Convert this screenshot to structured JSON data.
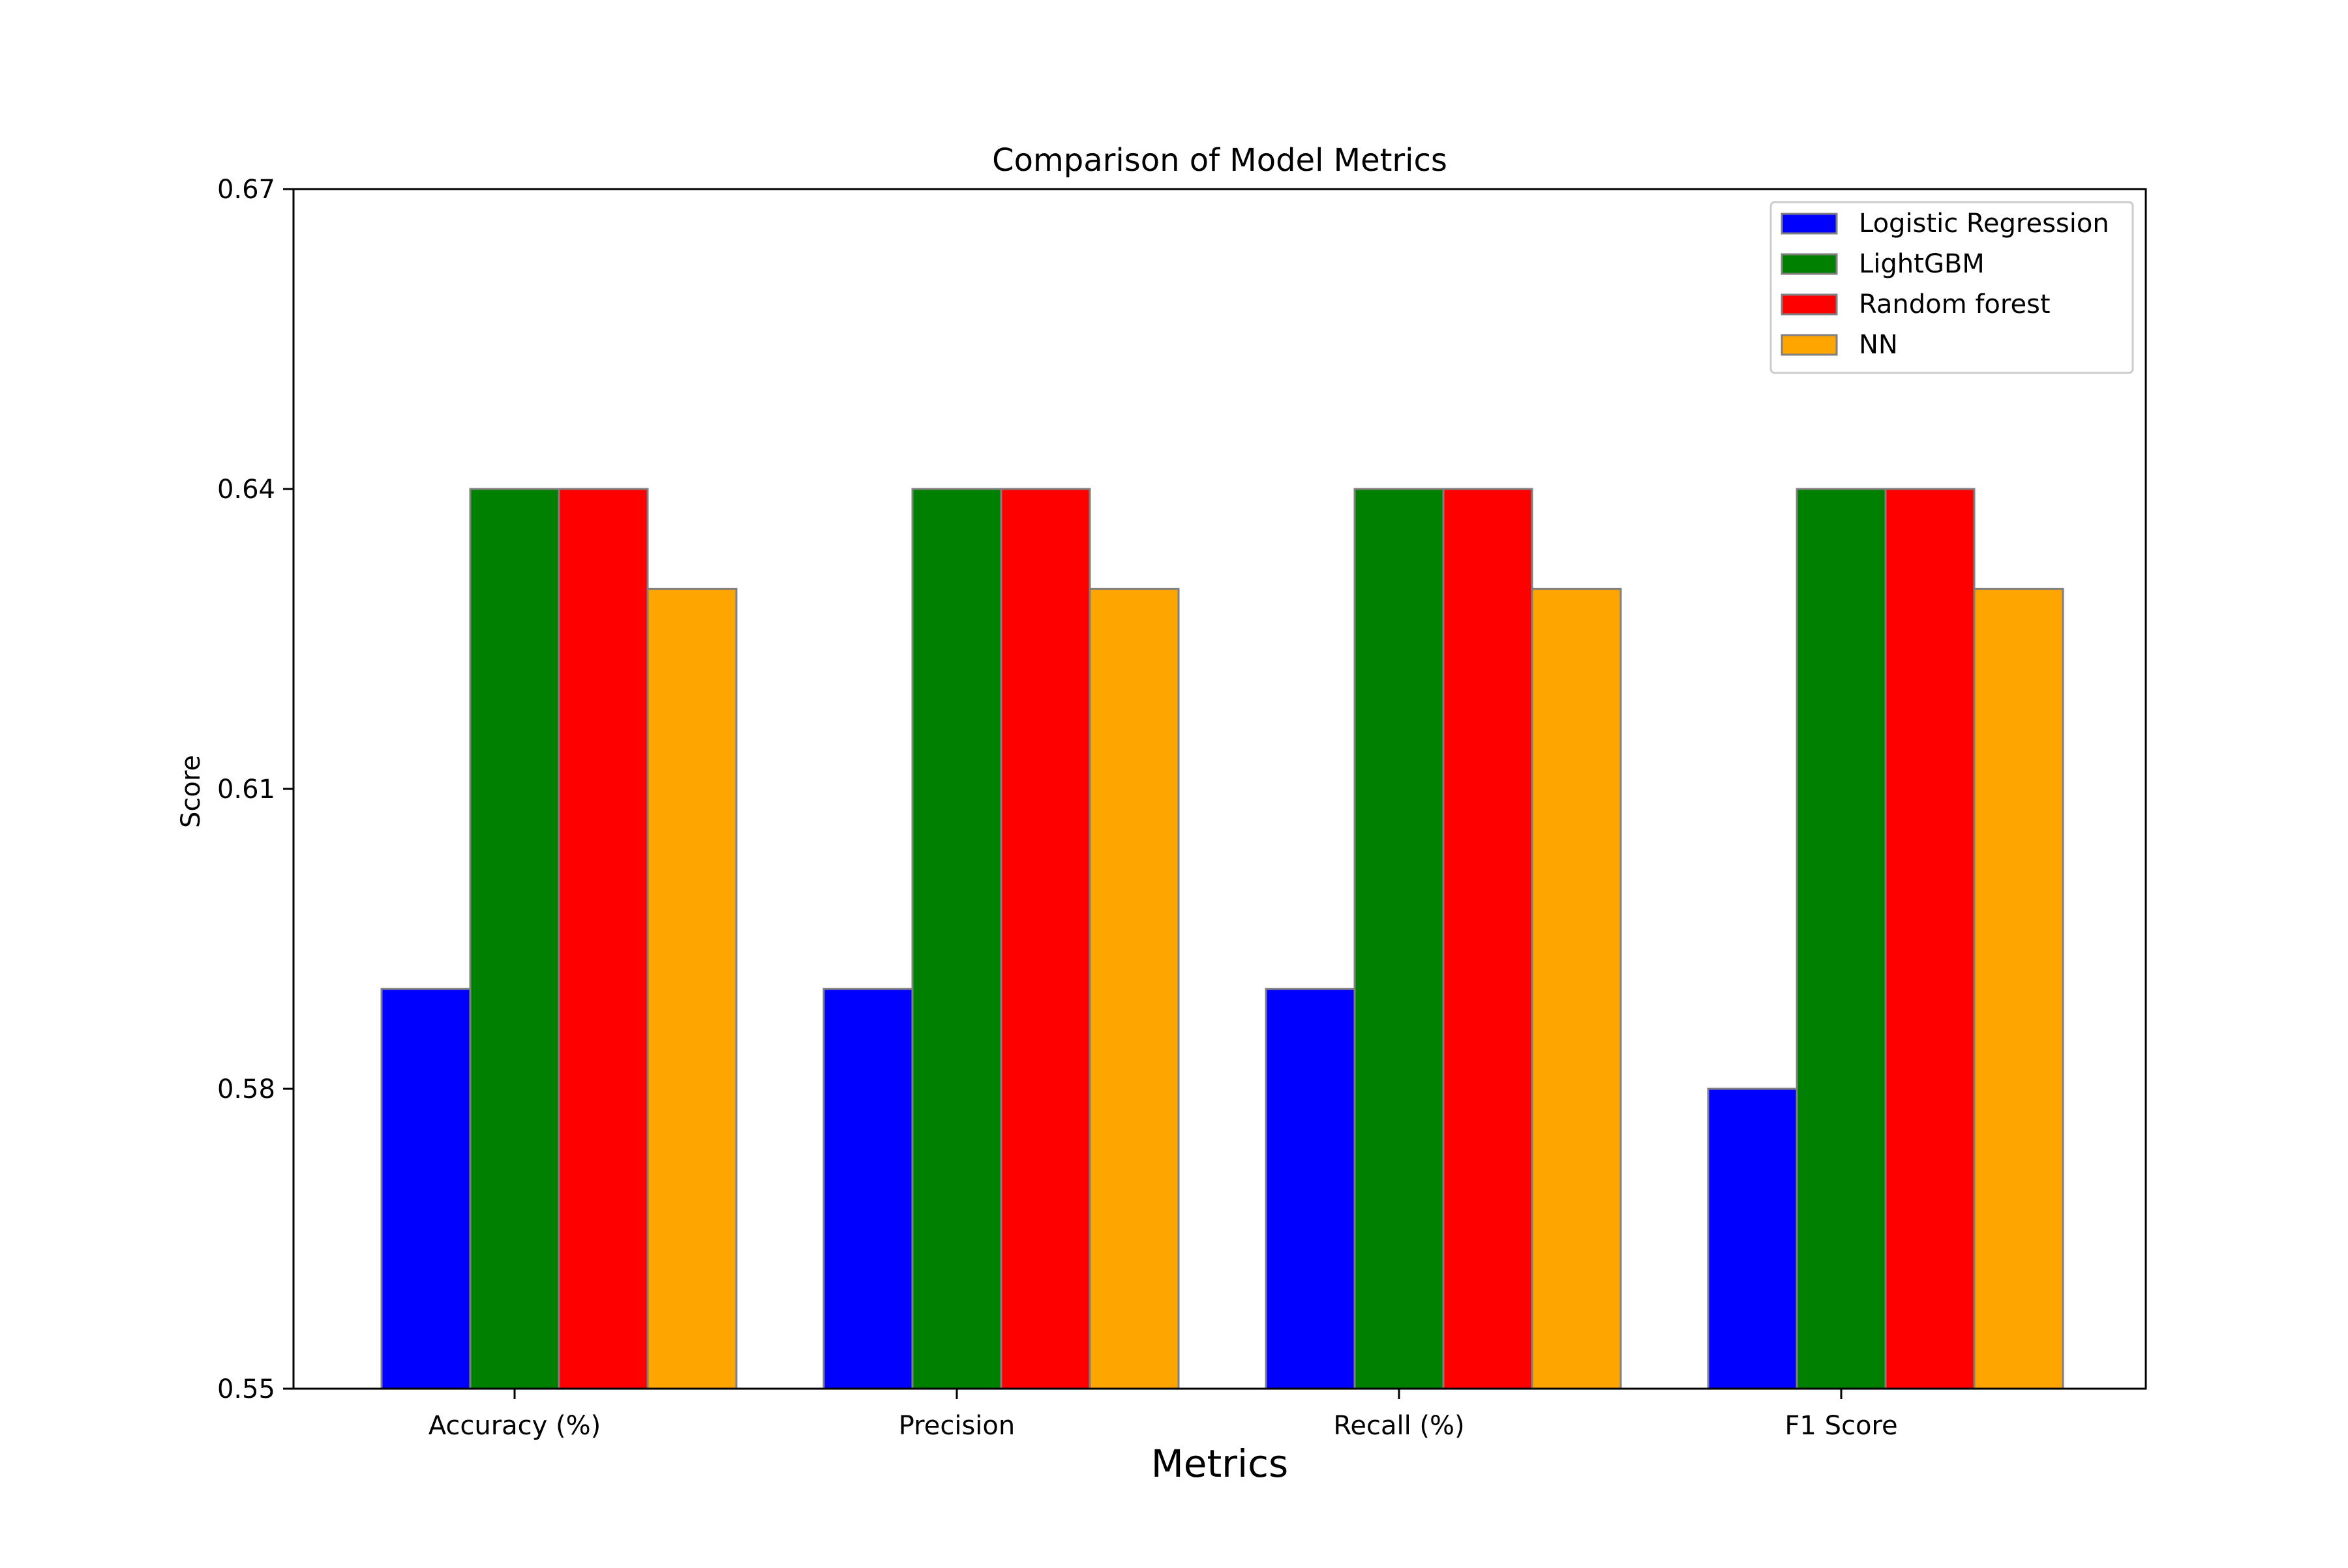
{
  "chart_data": {
    "type": "bar",
    "title": "Comparison of Model Metrics",
    "xlabel": "Metrics",
    "ylabel": "Score",
    "categories": [
      "Accuracy (%)",
      "Precision",
      "Recall (%)",
      "F1 Score"
    ],
    "ylim": [
      0.55,
      0.67
    ],
    "yticks": [
      "0.55",
      "0.58",
      "0.61",
      "0.64",
      "0.67"
    ],
    "grid": false,
    "legend_position": "top-right",
    "series": [
      {
        "name": "Logistic Regression",
        "color": "#0000ff",
        "values": [
          0.59,
          0.59,
          0.59,
          0.58
        ]
      },
      {
        "name": "LightGBM",
        "color": "#008000",
        "values": [
          0.64,
          0.64,
          0.64,
          0.64
        ]
      },
      {
        "name": "Random forest",
        "color": "#ff0000",
        "values": [
          0.64,
          0.64,
          0.64,
          0.64
        ]
      },
      {
        "name": "NN",
        "color": "#ffa500",
        "values": [
          0.63,
          0.63,
          0.63,
          0.63
        ]
      }
    ],
    "bar_edge_color": "#808080"
  }
}
